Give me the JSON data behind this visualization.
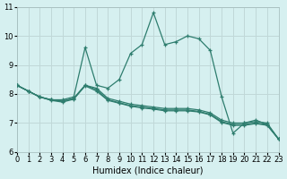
{
  "xlabel": "Humidex (Indice chaleur)",
  "ylabel": "",
  "bg_color": "#d6f0f0",
  "grid_color": "#c0d8d8",
  "line_color": "#2e7d6e",
  "xlim": [
    0,
    23
  ],
  "ylim": [
    6,
    11
  ],
  "yticks": [
    6,
    7,
    8,
    9,
    10,
    11
  ],
  "xticks": [
    0,
    1,
    2,
    3,
    4,
    5,
    6,
    7,
    8,
    9,
    10,
    11,
    12,
    13,
    14,
    15,
    16,
    17,
    18,
    19,
    20,
    21,
    22,
    23
  ],
  "series": [
    [
      8.3,
      8.1,
      7.9,
      7.8,
      7.8,
      7.9,
      9.6,
      8.3,
      8.2,
      8.5,
      9.4,
      9.7,
      10.8,
      9.7,
      9.8,
      10.0,
      9.9,
      9.5,
      7.9,
      6.65,
      7.0,
      7.1,
      6.95,
      6.45
    ],
    [
      8.3,
      8.1,
      7.9,
      7.8,
      7.75,
      7.85,
      8.3,
      8.2,
      7.85,
      7.75,
      7.65,
      7.6,
      7.55,
      7.5,
      7.5,
      7.5,
      7.45,
      7.35,
      7.1,
      7.0,
      7.0,
      7.05,
      7.0,
      6.45
    ],
    [
      8.3,
      8.1,
      7.9,
      7.8,
      7.75,
      7.85,
      8.3,
      8.15,
      7.8,
      7.7,
      7.6,
      7.55,
      7.5,
      7.45,
      7.45,
      7.45,
      7.4,
      7.3,
      7.05,
      6.95,
      6.95,
      7.0,
      6.95,
      6.45
    ],
    [
      8.3,
      8.1,
      7.9,
      7.78,
      7.72,
      7.82,
      8.28,
      8.1,
      7.78,
      7.68,
      7.58,
      7.52,
      7.48,
      7.42,
      7.42,
      7.42,
      7.38,
      7.28,
      7.02,
      6.92,
      6.92,
      6.98,
      6.92,
      6.45
    ]
  ]
}
